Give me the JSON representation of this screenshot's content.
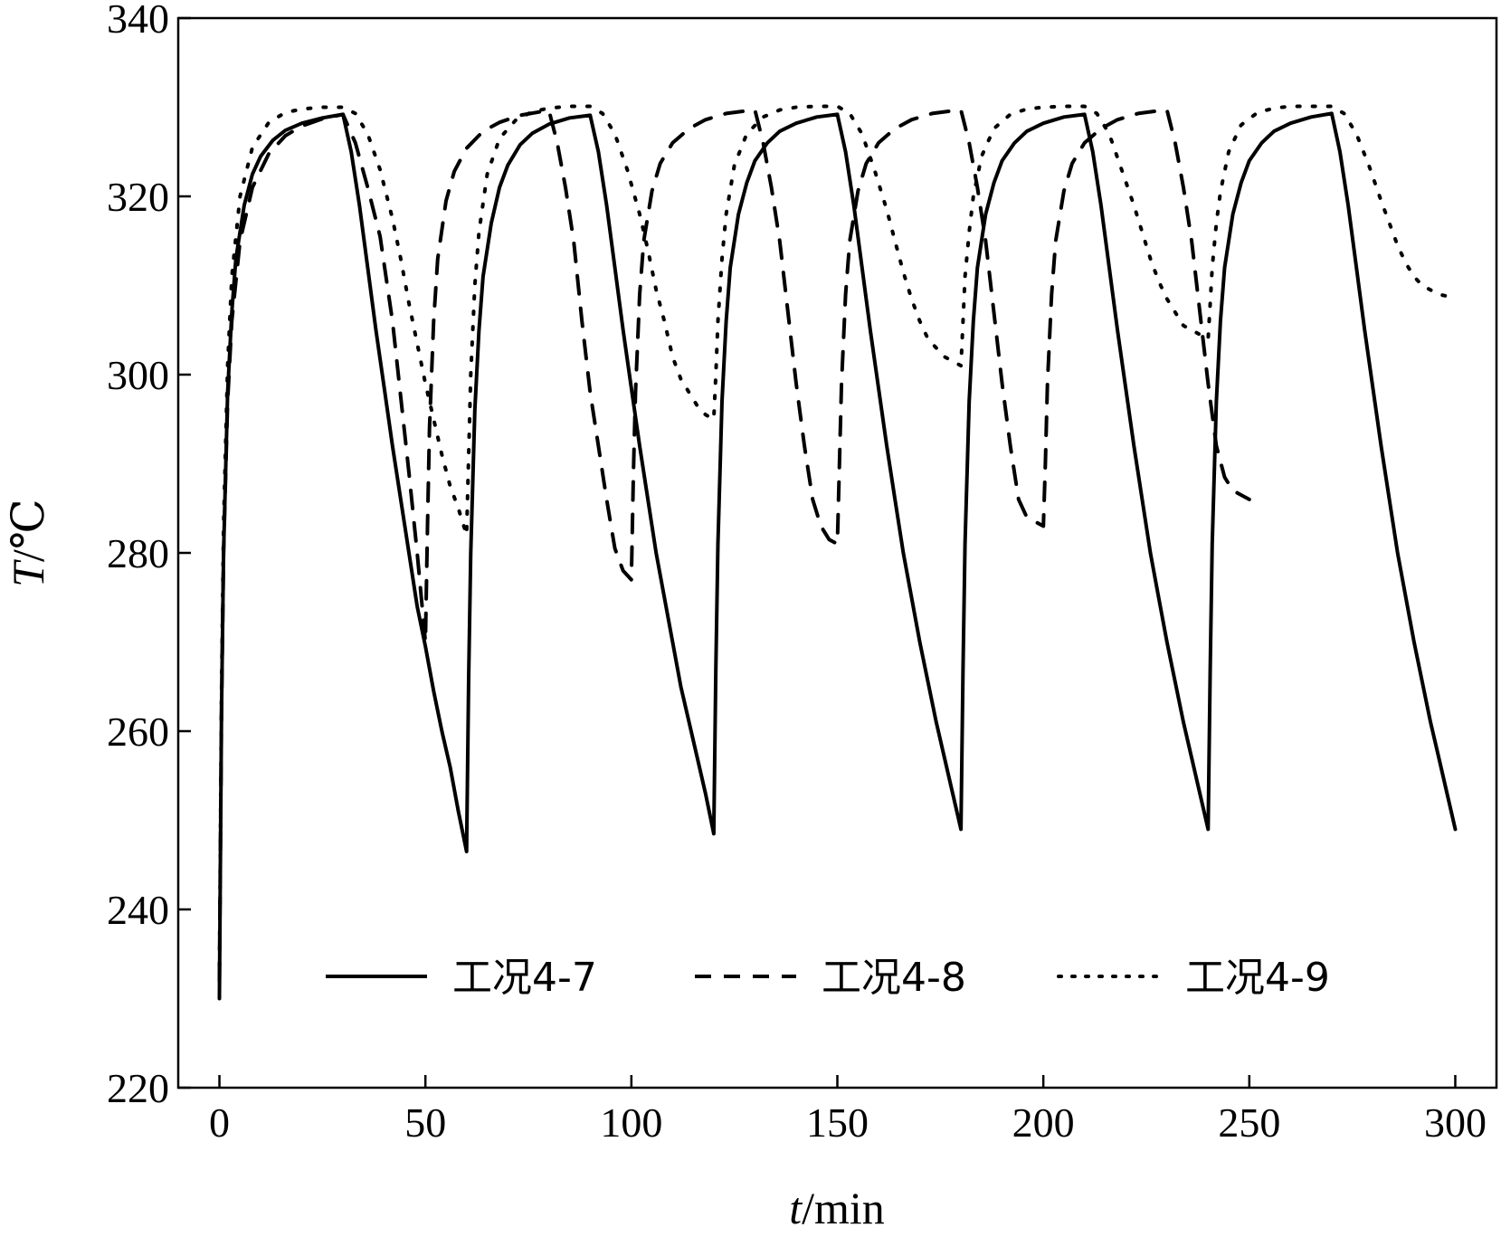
{
  "chart_data": {
    "type": "line",
    "title": "",
    "xlabel": {
      "var": "t",
      "unit": "/min"
    },
    "ylabel": {
      "var": "T",
      "unit": "/℃"
    },
    "xlim": [
      -10,
      310
    ],
    "ylim": [
      220,
      340
    ],
    "xticks": [
      0,
      50,
      100,
      150,
      200,
      250,
      300
    ],
    "yticks": [
      220,
      240,
      260,
      280,
      300,
      320,
      340
    ],
    "grid": false,
    "legend": {
      "position": "bottom-center"
    },
    "series": [
      {
        "name": "工况4-7",
        "style": "solid",
        "x": [
          0,
          0.5,
          1,
          2,
          3,
          4,
          6,
          8,
          10,
          13,
          16,
          20,
          25,
          30,
          32,
          34,
          36,
          38,
          40,
          42,
          44,
          46,
          48,
          50,
          52,
          54,
          56,
          58,
          60,
          60.5,
          61,
          62,
          63,
          64,
          66,
          68,
          70,
          73,
          76,
          80,
          85,
          90,
          92,
          94,
          96,
          98,
          100,
          102,
          104,
          106,
          108,
          110,
          112,
          114,
          116,
          118,
          120,
          120.5,
          121,
          122,
          123,
          124,
          126,
          128,
          130,
          133,
          136,
          140,
          145,
          150,
          152,
          154,
          156,
          158,
          160,
          162,
          164,
          166,
          168,
          170,
          172,
          174,
          176,
          178,
          180,
          180.5,
          181,
          182,
          183,
          184,
          186,
          188,
          190,
          193,
          196,
          200,
          205,
          210,
          212,
          214,
          216,
          218,
          220,
          222,
          224,
          226,
          228,
          230,
          232,
          234,
          236,
          238,
          240,
          240.5,
          241,
          242,
          243,
          244,
          246,
          248,
          250,
          253,
          256,
          260,
          265,
          270,
          272,
          274,
          276,
          278,
          280,
          282,
          284,
          286,
          288,
          290,
          292,
          294,
          296,
          298,
          300
        ],
        "values": [
          230,
          262,
          280,
          298,
          307,
          313,
          319,
          322.5,
          324.5,
          326.3,
          327.4,
          328.2,
          328.8,
          329.2,
          325,
          319,
          312,
          305,
          298.5,
          292,
          286,
          280,
          274,
          269.5,
          264.5,
          260,
          256,
          251,
          246.5,
          266,
          280,
          296,
          305,
          311,
          317,
          321,
          323.5,
          325.8,
          327.1,
          328.1,
          328.8,
          329.1,
          325,
          319,
          312,
          305,
          298.5,
          292,
          286,
          280,
          275,
          270,
          265,
          261,
          257,
          253,
          248.5,
          267,
          281,
          297,
          306,
          312,
          318,
          321.5,
          324,
          326,
          327.3,
          328.2,
          328.9,
          329.2,
          325,
          319,
          312,
          305,
          298.5,
          292,
          286,
          280,
          275,
          270,
          265.5,
          261,
          257,
          253,
          249,
          267,
          281,
          297,
          306,
          312,
          318,
          321.5,
          324,
          326,
          327.3,
          328.2,
          328.9,
          329.2,
          325,
          319,
          312,
          305,
          298.5,
          292,
          286,
          280,
          275,
          270,
          265.5,
          261,
          257,
          253,
          249,
          267,
          281,
          297,
          306,
          312,
          318,
          321.5,
          324,
          326,
          327.3,
          328.2,
          328.9,
          329.3,
          325,
          319,
          312,
          305,
          298.5,
          292,
          286,
          280,
          275,
          270,
          265.5,
          261,
          257,
          253,
          249
        ]
      },
      {
        "name": "工况4-8",
        "style": "dashed",
        "x": [
          0,
          0.5,
          1,
          2,
          3,
          5,
          8,
          12,
          16,
          20,
          25,
          30,
          33,
          36,
          39,
          42,
          44,
          46,
          48,
          50,
          50.5,
          51,
          52,
          53,
          55,
          57,
          60,
          64,
          68,
          73,
          78,
          80,
          82,
          84,
          86,
          88,
          90,
          92,
          94,
          96,
          98,
          100,
          100.5,
          101,
          102,
          103,
          105,
          107,
          110,
          114,
          118,
          123,
          128,
          130,
          132,
          134,
          136,
          138,
          140,
          142,
          144,
          146,
          148,
          150,
          150.5,
          151,
          152,
          153,
          155,
          157,
          160,
          164,
          168,
          173,
          178,
          180,
          182,
          184,
          186,
          188,
          190,
          192,
          194,
          196,
          198,
          200,
          200.5,
          201,
          202,
          203,
          205,
          207,
          210,
          214,
          218,
          223,
          228,
          230,
          232,
          234,
          236,
          238,
          240,
          242,
          244,
          246,
          248,
          250
        ],
        "values": [
          232,
          262,
          280,
          297,
          306,
          315,
          321,
          324.8,
          326.8,
          327.9,
          328.7,
          329.2,
          326,
          321,
          315.5,
          306,
          297.5,
          289,
          280,
          270,
          283,
          294,
          306,
          313,
          319.5,
          322.8,
          325.4,
          327.3,
          328.3,
          329.1,
          329.5,
          329.6,
          326,
          321,
          315,
          306,
          298,
          292,
          286,
          280.5,
          278,
          277,
          289,
          298,
          309,
          315,
          320.6,
          323.7,
          326,
          327.6,
          328.6,
          329.3,
          329.6,
          329.7,
          326,
          321,
          315,
          307,
          299,
          292,
          286,
          283,
          281.5,
          281,
          290,
          299,
          309,
          315,
          320.6,
          323.7,
          326,
          327.6,
          328.6,
          329.3,
          329.6,
          329.7,
          326,
          321,
          315,
          307,
          299,
          292,
          286,
          284,
          283.5,
          283,
          290,
          299,
          309,
          315,
          320.6,
          323.7,
          326,
          327.6,
          328.6,
          329.3,
          329.6,
          329.7,
          326,
          321,
          315,
          307,
          299,
          292,
          288.5,
          287,
          286.5,
          286
        ]
      },
      {
        "name": "工况4-9",
        "style": "dotted",
        "x": [
          0,
          0.5,
          1,
          2,
          3,
          5,
          8,
          12,
          16,
          20,
          25,
          30,
          33,
          36,
          39,
          42,
          44,
          46,
          48,
          50,
          52,
          54,
          56,
          58,
          60,
          60.5,
          61,
          62,
          63,
          65,
          68,
          72,
          76,
          80,
          85,
          90,
          93,
          96,
          99,
          102,
          104,
          106,
          108,
          110,
          112,
          114,
          116,
          118,
          120,
          120.5,
          121,
          122,
          123,
          125,
          128,
          132,
          136,
          140,
          145,
          150,
          153,
          156,
          159,
          162,
          164,
          166,
          168,
          170,
          172,
          174,
          176,
          178,
          180,
          180.5,
          181,
          182,
          183,
          185,
          188,
          192,
          196,
          200,
          205,
          210,
          213,
          216,
          219,
          222,
          224,
          226,
          228,
          230,
          232,
          234,
          236,
          238,
          240,
          240.5,
          241,
          242,
          243,
          245,
          248,
          252,
          256,
          260,
          265,
          270,
          273,
          276,
          279,
          282,
          284,
          286,
          288,
          290,
          292,
          294,
          296,
          298,
          300
        ],
        "values": [
          232,
          264,
          283,
          301,
          311,
          320,
          325.5,
          328.3,
          329.4,
          329.8,
          330,
          330,
          329.3,
          327,
          323,
          317.5,
          313,
          308,
          303.5,
          299,
          295,
          291,
          287.5,
          285,
          282,
          291,
          300,
          310,
          316,
          322.5,
          326.5,
          328.6,
          329.5,
          329.9,
          330.1,
          330.1,
          329.3,
          327,
          323,
          318,
          314,
          309.5,
          306,
          302,
          299.5,
          298,
          296.5,
          295.5,
          295,
          300,
          306,
          313,
          318,
          323.5,
          327,
          328.9,
          329.7,
          330,
          330.1,
          330.1,
          329.3,
          327,
          323,
          318.5,
          315,
          311.5,
          308.5,
          306,
          304,
          303,
          302,
          301.5,
          301,
          306,
          311,
          316,
          320,
          324.5,
          327.6,
          329.2,
          329.8,
          330,
          330.1,
          330.1,
          329.3,
          327,
          323,
          319,
          316,
          313,
          310.5,
          308.5,
          307,
          305.5,
          305,
          304.5,
          304,
          308,
          312,
          317,
          320.5,
          325,
          328,
          329.4,
          329.9,
          330.1,
          330.1,
          330.1,
          329.3,
          327,
          323.5,
          319.5,
          317,
          314.5,
          312.5,
          311,
          310,
          309.5,
          309,
          308.8,
          308.5
        ]
      }
    ]
  }
}
